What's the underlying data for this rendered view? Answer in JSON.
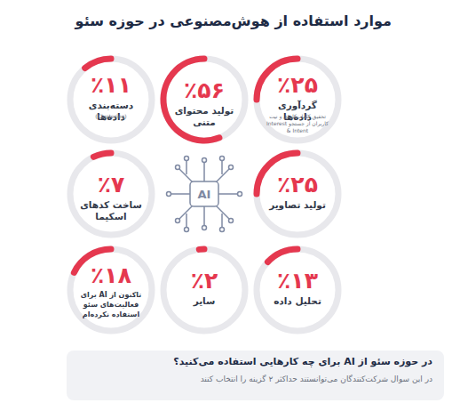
{
  "chart_data": {
    "type": "gauge",
    "title": "موارد استفاده از هوش‌مصنوعی در حوزه سئو",
    "categories": [
      "گردآوری داده‌ها",
      "تولید محتوای متنی",
      "دسته‌بندی داده‌ها",
      "تولید تصاویر",
      "ساخت کدهای اسکیما",
      "تحلیل داده",
      "سایر",
      "تاکنون از AI برای فعالیت‌های سئو استفاده نکرده‌ام"
    ],
    "category_notes": [
      "تحقیق کلمات‌کلیدی و نیت کاربران از جستجو Interest & Intent",
      null,
      "(Clustering)",
      null,
      null,
      null,
      null,
      null
    ],
    "values": [
      25,
      56,
      11,
      25,
      7,
      13,
      2,
      18
    ],
    "value_labels": [
      "٪۲۵",
      "٪۵۶",
      "٪۱۱",
      "٪۲۵",
      "٪۷",
      "٪۱۳",
      "٪۲",
      "٪۱۸"
    ],
    "ylim": [
      0,
      100
    ],
    "color": "#e5384f",
    "data_labels": true,
    "icon_text": "AI",
    "annotations": [
      "در حوزه سئو از AI برای چه کارهایی استفاده می‌کنید؟",
      "در این سوال شرکت‌کنندگان می‌توانستند حداکثر ۲ گزینه را انتخاب کنند"
    ]
  }
}
